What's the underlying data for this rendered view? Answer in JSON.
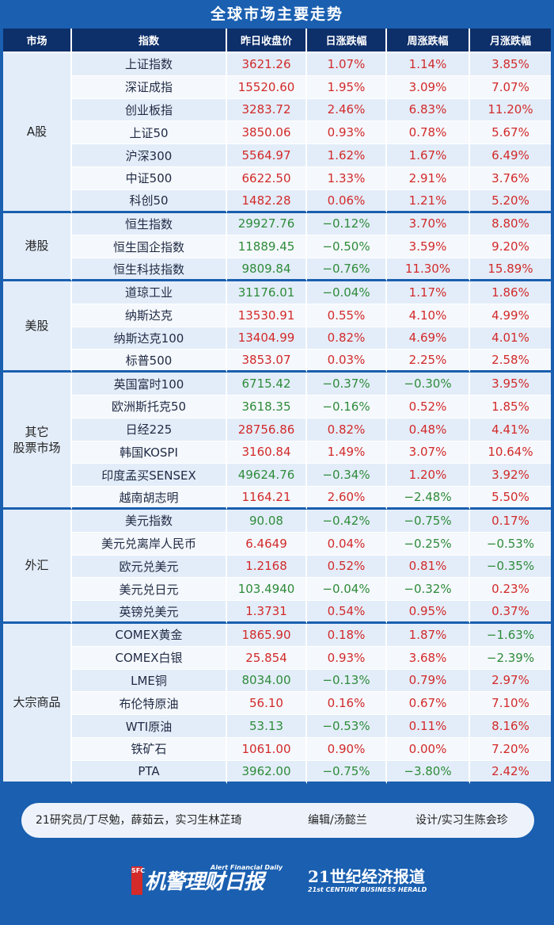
{
  "title": "全球市场主要走势",
  "headers": [
    "市场",
    "指数",
    "昨日收盘价",
    "日涨跌幅",
    "周涨跌幅",
    "月涨跌幅"
  ],
  "colors": {
    "up": "#d22a2a",
    "down": "#2e8b3a",
    "header_bg": "#0d2f6a",
    "page_bg": "#1a5fb0"
  },
  "groups": [
    {
      "market": "A股",
      "rows": [
        [
          "上证指数",
          "3621.26",
          "1.07%",
          "1.14%",
          "3.85%"
        ],
        [
          "深证成指",
          "15520.60",
          "1.95%",
          "3.09%",
          "7.07%"
        ],
        [
          "创业板指",
          "3283.72",
          "2.46%",
          "6.83%",
          "11.20%"
        ],
        [
          "上证50",
          "3850.06",
          "0.93%",
          "0.78%",
          "5.67%"
        ],
        [
          "沪深300",
          "5564.97",
          "1.62%",
          "1.67%",
          "6.49%"
        ],
        [
          "中证500",
          "6622.50",
          "1.33%",
          "2.91%",
          "3.76%"
        ],
        [
          "科创50",
          "1482.28",
          "0.06%",
          "1.21%",
          "5.20%"
        ]
      ]
    },
    {
      "market": "港股",
      "rows": [
        [
          "恒生指数",
          "29927.76",
          "−0.12%",
          "3.70%",
          "8.80%"
        ],
        [
          "恒生国企指数",
          "11889.45",
          "−0.50%",
          "3.59%",
          "9.20%"
        ],
        [
          "恒生科技指数",
          "9809.84",
          "−0.76%",
          "11.30%",
          "15.89%"
        ]
      ]
    },
    {
      "market": "美股",
      "rows": [
        [
          "道琼工业",
          "31176.01",
          "−0.04%",
          "1.17%",
          "1.86%"
        ],
        [
          "纳斯达克",
          "13530.91",
          "0.55%",
          "4.10%",
          "4.99%"
        ],
        [
          "纳斯达克100",
          "13404.99",
          "0.82%",
          "4.69%",
          "4.01%"
        ],
        [
          "标普500",
          "3853.07",
          "0.03%",
          "2.25%",
          "2.58%"
        ]
      ]
    },
    {
      "market": "其它\n股票市场",
      "rows": [
        [
          "英国富时100",
          "6715.42",
          "−0.37%",
          "−0.30%",
          "3.95%"
        ],
        [
          "欧洲斯托克50",
          "3618.35",
          "−0.16%",
          "0.52%",
          "1.85%"
        ],
        [
          "日经225",
          "28756.86",
          "0.82%",
          "0.48%",
          "4.41%"
        ],
        [
          "韩国KOSPI",
          "3160.84",
          "1.49%",
          "3.07%",
          "10.64%"
        ],
        [
          "印度孟买SENSEX",
          "49624.76",
          "−0.34%",
          "1.20%",
          "3.92%"
        ],
        [
          "越南胡志明",
          "1164.21",
          "2.60%",
          "−2.48%",
          "5.50%"
        ]
      ]
    },
    {
      "market": "外汇",
      "rows": [
        [
          "美元指数",
          "90.08",
          "−0.42%",
          "−0.75%",
          "0.17%"
        ],
        [
          "美元兑离岸人民币",
          "6.4649",
          "0.04%",
          "−0.25%",
          "−0.53%"
        ],
        [
          "欧元兑美元",
          "1.2168",
          "0.52%",
          "0.81%",
          "−0.35%"
        ],
        [
          "美元兑日元",
          "103.4940",
          "−0.04%",
          "−0.32%",
          "0.23%"
        ],
        [
          "英镑兑美元",
          "1.3731",
          "0.54%",
          "0.95%",
          "0.37%"
        ]
      ]
    },
    {
      "market": "大宗商品",
      "rows": [
        [
          "COMEX黄金",
          "1865.90",
          "0.18%",
          "1.87%",
          "−1.63%"
        ],
        [
          "COMEX白银",
          "25.854",
          "0.93%",
          "3.68%",
          "−2.39%"
        ],
        [
          "LME铜",
          "8034.00",
          "−0.13%",
          "0.79%",
          "2.97%"
        ],
        [
          "布伦特原油",
          "56.10",
          "0.16%",
          "0.67%",
          "7.10%"
        ],
        [
          "WTI原油",
          "53.13",
          "−0.53%",
          "0.11%",
          "8.16%"
        ],
        [
          "铁矿石",
          "1061.00",
          "0.90%",
          "0.00%",
          "7.20%"
        ],
        [
          "PTA",
          "3962.00",
          "−0.75%",
          "−3.80%",
          "2.42%"
        ]
      ]
    }
  ],
  "credits": {
    "research": "21研究员/丁尽勉，薛茹云，实习生林芷琦",
    "editor": "编辑/汤懿兰",
    "design": "设计/实习生陈会珍"
  },
  "logo1": {
    "badge": "SFC",
    "main": "机警理财日报",
    "tag": "Alert Financial Daily"
  },
  "logo2": {
    "main": "21世纪经济报道",
    "sub": "21st CENTURY BUSINESS HERALD"
  }
}
